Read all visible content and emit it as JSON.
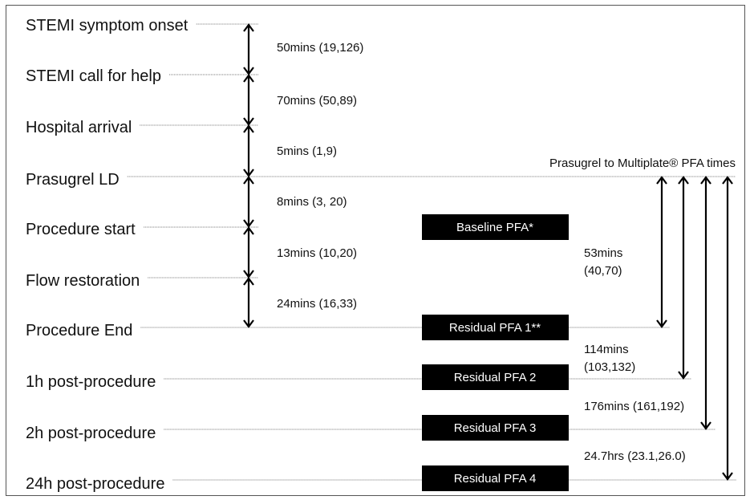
{
  "stages": [
    "STEMI symptom onset",
    "STEMI call for help",
    "Hospital arrival",
    "Prasugrel LD",
    "Procedure start",
    "Flow restoration",
    "Procedure End",
    "1h post-procedure",
    "2h post-procedure",
    "24h post-procedure"
  ],
  "intervals": [
    "50mins (19,126)",
    "70mins (50,89)",
    "5mins (1,9)",
    "8mins (3, 20)",
    "13mins (10,20)",
    "24mins (16,33)"
  ],
  "pfa_title": "Prasugrel to Multiplate® PFA times",
  "pfa_boxes": [
    "Baseline PFA*",
    "Residual PFA 1**",
    "Residual PFA 2",
    "Residual PFA 3",
    "Residual PFA 4"
  ],
  "pfa_times": [
    [
      "53mins",
      "(40,70)"
    ],
    [
      "114mins",
      "(103,132)"
    ],
    [
      "176mins (161,192)"
    ],
    [
      "24.7hrs (23.1,26.0)"
    ]
  ]
}
